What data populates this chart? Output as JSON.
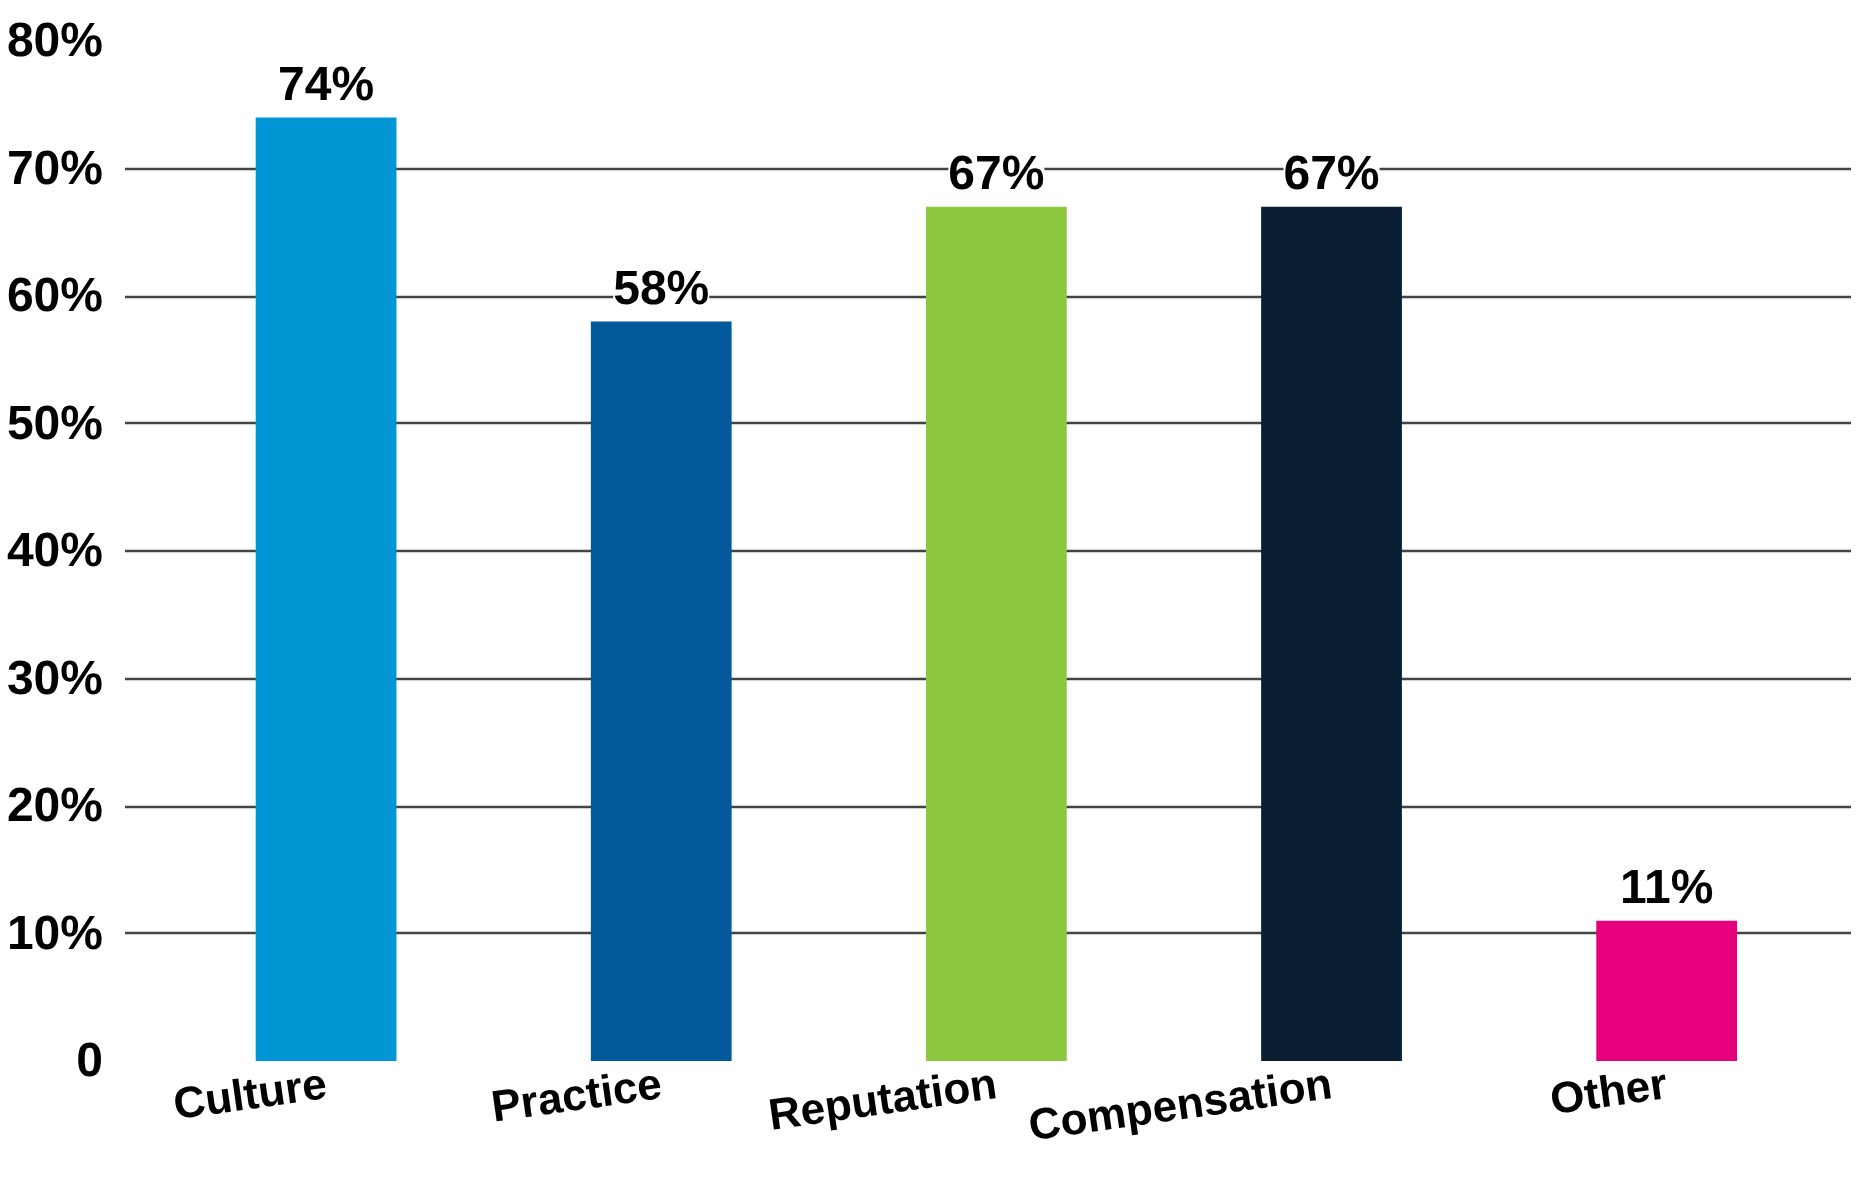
{
  "chart_data": {
    "type": "bar",
    "categories": [
      "Culture",
      "Practice",
      "Reputation",
      "Compensation",
      "Other"
    ],
    "values": [
      74,
      58,
      67,
      67,
      11
    ],
    "colors": [
      "#0096d6",
      "#005a9c",
      "#8dc63f",
      "#0a1f33",
      "#e6007e"
    ],
    "ylim": [
      0,
      80
    ],
    "yticks": [
      {
        "value": 0,
        "label": "0"
      },
      {
        "value": 10,
        "label": "10%"
      },
      {
        "value": 20,
        "label": "20%"
      },
      {
        "value": 30,
        "label": "30%"
      },
      {
        "value": 40,
        "label": "40%"
      },
      {
        "value": 50,
        "label": "50%"
      },
      {
        "value": 60,
        "label": "60%"
      },
      {
        "value": 70,
        "label": "70%"
      },
      {
        "value": 80,
        "label": "80%"
      }
    ],
    "grid": "y",
    "value_labels": [
      "74%",
      "58%",
      "67%",
      "67%",
      "11%"
    ]
  }
}
